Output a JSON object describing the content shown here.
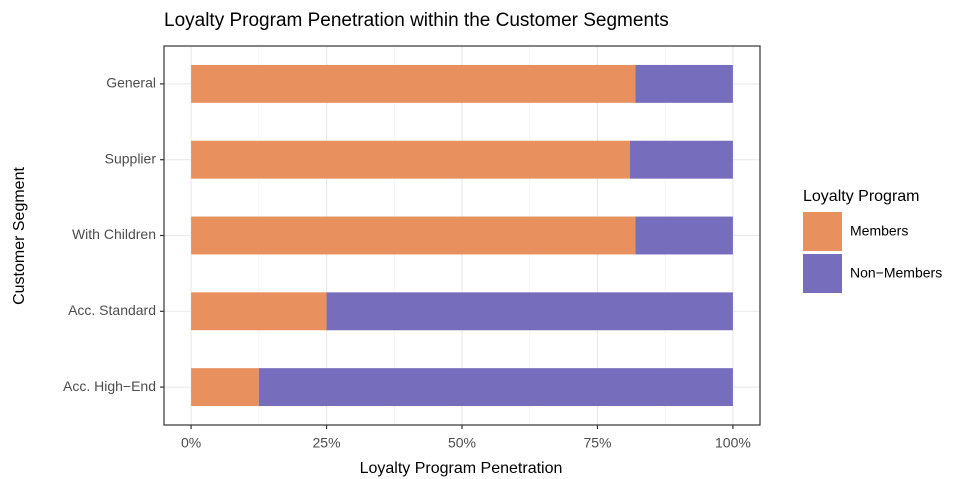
{
  "chart_data": {
    "type": "stacked-bar-horizontal",
    "title": "Loyalty Program Penetration within the Customer Segments",
    "x_label": "Loyalty Program Penetration",
    "y_label": "Customer Segment",
    "categories": [
      "General",
      "Supplier",
      "With Children",
      "Acc. Standard",
      "Acc. High−End"
    ],
    "series": [
      {
        "name": "Members",
        "color": "#e8915f",
        "values": [
          82,
          81,
          82,
          25,
          12.5
        ]
      },
      {
        "name": "Non−Members",
        "color": "#776dbd",
        "values": [
          18,
          19,
          18,
          75,
          87.5
        ]
      }
    ],
    "xlim": [
      -5,
      105
    ],
    "xticks": [
      {
        "value": 0,
        "label": "0%"
      },
      {
        "value": 25,
        "label": "25%"
      },
      {
        "value": 50,
        "label": "50%"
      },
      {
        "value": 75,
        "label": "75%"
      },
      {
        "value": 100,
        "label": "100%"
      }
    ],
    "legend_title": "Loyalty Program",
    "legend_position": "right",
    "grid": true
  }
}
